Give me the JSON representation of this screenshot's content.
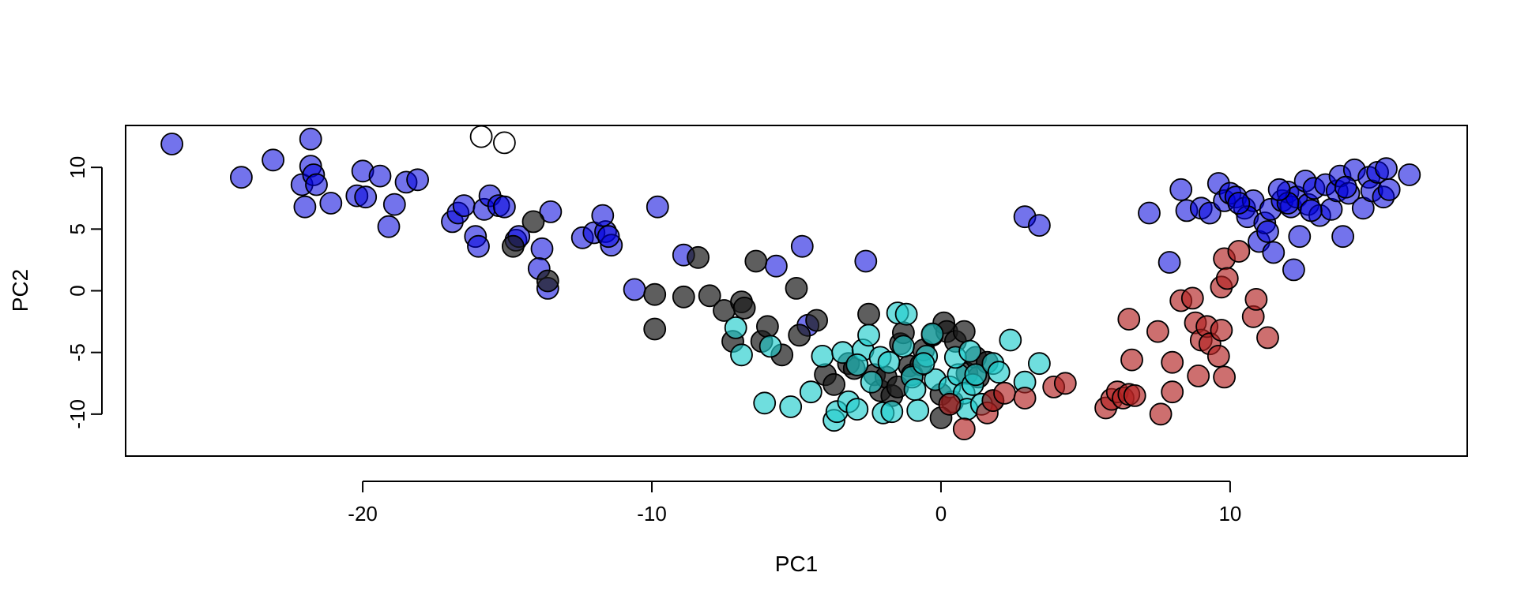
{
  "chart_data": {
    "type": "scatter",
    "title": "",
    "xlabel": "PC1",
    "ylabel": "PC2",
    "xlim": [
      -28.2,
      18.2
    ],
    "ylim": [
      -13.4,
      13.4
    ],
    "x_ticks": [
      -20,
      -10,
      0,
      10
    ],
    "x_tick_labels": [
      "-20",
      "-10",
      "0",
      "10"
    ],
    "y_ticks": [
      -10,
      -5,
      0,
      5,
      10
    ],
    "y_tick_labels": [
      "-10",
      "-5",
      "0",
      "5",
      "10"
    ],
    "grid": false,
    "legend": "none",
    "series": [
      {
        "name": "blue",
        "color": "#0000dd",
        "opacity": 0.55,
        "points": [
          [
            -26.6,
            11.9
          ],
          [
            -24.2,
            9.2
          ],
          [
            -23.1,
            10.6
          ],
          [
            -21.8,
            12.3
          ],
          [
            -22.1,
            8.6
          ],
          [
            -21.8,
            10.1
          ],
          [
            -21.7,
            9.4
          ],
          [
            -21.6,
            8.6
          ],
          [
            -22.0,
            6.8
          ],
          [
            -21.1,
            7.1
          ],
          [
            -20.2,
            7.7
          ],
          [
            -20.0,
            9.7
          ],
          [
            -19.9,
            7.6
          ],
          [
            -19.4,
            9.3
          ],
          [
            -18.9,
            7.0
          ],
          [
            -19.1,
            5.2
          ],
          [
            -18.5,
            8.8
          ],
          [
            -18.1,
            9.0
          ],
          [
            -16.9,
            5.6
          ],
          [
            -16.7,
            6.3
          ],
          [
            -16.5,
            6.9
          ],
          [
            -16.1,
            4.4
          ],
          [
            -15.8,
            6.6
          ],
          [
            -15.6,
            7.7
          ],
          [
            -15.3,
            6.9
          ],
          [
            -15.1,
            6.8
          ],
          [
            -16.0,
            3.6
          ],
          [
            -14.7,
            4.1
          ],
          [
            -14.6,
            4.4
          ],
          [
            -13.8,
            3.4
          ],
          [
            -13.9,
            1.8
          ],
          [
            -13.6,
            0.2
          ],
          [
            -13.5,
            6.4
          ],
          [
            -12.4,
            4.3
          ],
          [
            -12.0,
            4.7
          ],
          [
            -11.6,
            4.8
          ],
          [
            -11.7,
            6.1
          ],
          [
            -11.4,
            3.7
          ],
          [
            -11.5,
            4.4
          ],
          [
            -10.6,
            0.1
          ],
          [
            -9.8,
            6.8
          ],
          [
            -8.9,
            2.9
          ],
          [
            -5.7,
            2.0
          ],
          [
            -4.8,
            3.6
          ],
          [
            -4.6,
            -2.8
          ],
          [
            -2.6,
            2.4
          ],
          [
            2.9,
            6.0
          ],
          [
            3.4,
            5.3
          ],
          [
            7.2,
            6.3
          ],
          [
            7.9,
            2.3
          ],
          [
            8.3,
            8.2
          ],
          [
            8.5,
            6.5
          ],
          [
            9.0,
            6.7
          ],
          [
            9.3,
            6.3
          ],
          [
            9.6,
            8.7
          ],
          [
            9.8,
            7.3
          ],
          [
            10.0,
            7.9
          ],
          [
            10.2,
            7.6
          ],
          [
            10.5,
            6.7
          ],
          [
            10.8,
            7.3
          ],
          [
            10.6,
            6.0
          ],
          [
            11.0,
            4.0
          ],
          [
            11.2,
            5.5
          ],
          [
            11.3,
            4.8
          ],
          [
            11.4,
            6.6
          ],
          [
            11.5,
            3.1
          ],
          [
            11.8,
            7.3
          ],
          [
            12.0,
            8.0
          ],
          [
            12.1,
            6.8
          ],
          [
            12.3,
            7.6
          ],
          [
            12.4,
            4.4
          ],
          [
            12.6,
            8.9
          ],
          [
            12.7,
            7.0
          ],
          [
            12.2,
            1.7
          ],
          [
            12.9,
            8.3
          ],
          [
            13.1,
            6.1
          ],
          [
            13.3,
            8.6
          ],
          [
            13.5,
            6.6
          ],
          [
            13.7,
            8.1
          ],
          [
            13.8,
            9.3
          ],
          [
            13.9,
            4.4
          ],
          [
            14.1,
            7.9
          ],
          [
            14.3,
            9.8
          ],
          [
            14.6,
            6.7
          ],
          [
            14.8,
            9.2
          ],
          [
            14.9,
            8.1
          ],
          [
            15.1,
            9.6
          ],
          [
            15.3,
            7.6
          ],
          [
            15.5,
            8.2
          ],
          [
            15.4,
            9.9
          ],
          [
            16.2,
            9.4
          ],
          [
            14.0,
            8.4
          ],
          [
            12.8,
            6.5
          ],
          [
            12.0,
            7.1
          ],
          [
            11.7,
            8.2
          ],
          [
            10.3,
            7.1
          ]
        ]
      },
      {
        "name": "white",
        "color": "#ffffff",
        "opacity": 1.0,
        "points": [
          [
            -15.9,
            12.5
          ],
          [
            -15.1,
            12.0
          ]
        ]
      },
      {
        "name": "dark gray",
        "color": "#1a1a1a",
        "opacity": 0.7,
        "points": [
          [
            -14.8,
            3.6
          ],
          [
            -14.1,
            5.6
          ],
          [
            -13.6,
            0.8
          ],
          [
            -9.9,
            -0.3
          ],
          [
            -9.9,
            -3.1
          ],
          [
            -8.9,
            -0.5
          ],
          [
            -8.4,
            2.7
          ],
          [
            -8.0,
            -0.4
          ],
          [
            -7.5,
            -1.6
          ],
          [
            -7.2,
            -4.1
          ],
          [
            -6.9,
            -0.9
          ],
          [
            -6.8,
            -1.4
          ],
          [
            -6.4,
            2.4
          ],
          [
            -6.2,
            -4.1
          ],
          [
            -6.0,
            -2.9
          ],
          [
            -5.5,
            -5.2
          ],
          [
            -5.0,
            0.2
          ],
          [
            -4.9,
            -3.6
          ],
          [
            -4.3,
            -2.4
          ],
          [
            -4.0,
            -6.8
          ],
          [
            -3.7,
            -7.6
          ],
          [
            -3.2,
            -5.9
          ],
          [
            -3.0,
            -6.3
          ],
          [
            -2.5,
            -1.9
          ],
          [
            -2.3,
            -6.8
          ],
          [
            -2.1,
            -8.1
          ],
          [
            -1.9,
            -7.0
          ],
          [
            -1.7,
            -8.5
          ],
          [
            -1.5,
            -7.8
          ],
          [
            -1.4,
            -4.3
          ],
          [
            -1.3,
            -3.4
          ],
          [
            -1.1,
            -6.1
          ],
          [
            -1.0,
            -6.8
          ],
          [
            -0.7,
            -6.0
          ],
          [
            -0.6,
            -4.8
          ],
          [
            -0.3,
            -3.6
          ],
          [
            0.0,
            -8.4
          ],
          [
            0.1,
            -2.6
          ],
          [
            0.2,
            -3.3
          ],
          [
            0.4,
            -9.0
          ],
          [
            0.5,
            -4.1
          ],
          [
            0.8,
            -3.3
          ],
          [
            0.9,
            -6.7
          ],
          [
            1.2,
            -5.4
          ],
          [
            1.3,
            -7.0
          ],
          [
            1.6,
            -5.8
          ],
          [
            1.8,
            -8.9
          ],
          [
            0.0,
            -10.3
          ]
        ]
      },
      {
        "name": "cyan",
        "color": "#22cccc",
        "opacity": 0.65,
        "points": [
          [
            -7.1,
            -3.0
          ],
          [
            -6.9,
            -5.2
          ],
          [
            -6.1,
            -9.1
          ],
          [
            -5.9,
            -4.5
          ],
          [
            -5.2,
            -9.4
          ],
          [
            -4.5,
            -8.2
          ],
          [
            -4.1,
            -5.3
          ],
          [
            -3.7,
            -10.5
          ],
          [
            -3.6,
            -9.8
          ],
          [
            -3.4,
            -5.0
          ],
          [
            -3.2,
            -9.0
          ],
          [
            -2.9,
            -9.6
          ],
          [
            -2.7,
            -4.8
          ],
          [
            -2.5,
            -3.6
          ],
          [
            -2.4,
            -7.4
          ],
          [
            -2.1,
            -5.4
          ],
          [
            -2.0,
            -9.9
          ],
          [
            -1.8,
            -5.8
          ],
          [
            -1.7,
            -9.8
          ],
          [
            -1.5,
            -1.8
          ],
          [
            -1.3,
            -4.5
          ],
          [
            -1.2,
            -1.9
          ],
          [
            -1.0,
            -7.0
          ],
          [
            -0.9,
            -8.0
          ],
          [
            -0.8,
            -9.7
          ],
          [
            -0.5,
            -5.3
          ],
          [
            -0.3,
            -3.5
          ],
          [
            -0.2,
            -7.2
          ],
          [
            0.3,
            -7.8
          ],
          [
            0.6,
            -6.8
          ],
          [
            0.8,
            -8.3
          ],
          [
            0.9,
            -9.6
          ],
          [
            1.1,
            -7.6
          ],
          [
            1.2,
            -6.8
          ],
          [
            1.4,
            -9.2
          ],
          [
            1.8,
            -5.9
          ],
          [
            2.0,
            -6.6
          ],
          [
            2.4,
            -4.0
          ],
          [
            2.9,
            -7.4
          ],
          [
            3.4,
            -5.9
          ],
          [
            0.5,
            -5.4
          ],
          [
            1.0,
            -4.9
          ],
          [
            -0.6,
            -5.9
          ],
          [
            -2.9,
            -6.0
          ]
        ]
      },
      {
        "name": "red",
        "color": "#b22222",
        "opacity": 0.65,
        "points": [
          [
            0.3,
            -9.2
          ],
          [
            0.8,
            -11.2
          ],
          [
            1.6,
            -9.9
          ],
          [
            1.8,
            -8.9
          ],
          [
            2.2,
            -8.3
          ],
          [
            2.9,
            -8.7
          ],
          [
            3.9,
            -7.8
          ],
          [
            4.3,
            -7.5
          ],
          [
            5.7,
            -9.5
          ],
          [
            5.9,
            -8.8
          ],
          [
            6.1,
            -8.2
          ],
          [
            6.3,
            -8.7
          ],
          [
            6.5,
            -8.4
          ],
          [
            6.7,
            -8.5
          ],
          [
            6.5,
            -2.3
          ],
          [
            6.6,
            -5.6
          ],
          [
            7.5,
            -3.3
          ],
          [
            7.6,
            -10.0
          ],
          [
            8.0,
            -5.8
          ],
          [
            8.0,
            -8.2
          ],
          [
            8.3,
            -0.8
          ],
          [
            8.7,
            -0.6
          ],
          [
            8.8,
            -2.6
          ],
          [
            8.9,
            -6.9
          ],
          [
            9.0,
            -4.0
          ],
          [
            9.2,
            -2.9
          ],
          [
            9.3,
            -4.3
          ],
          [
            9.6,
            -5.3
          ],
          [
            9.7,
            -3.2
          ],
          [
            9.7,
            0.3
          ],
          [
            9.8,
            -7.0
          ],
          [
            9.8,
            2.6
          ],
          [
            9.9,
            1.0
          ],
          [
            10.3,
            3.2
          ],
          [
            10.8,
            -2.1
          ],
          [
            10.9,
            -0.7
          ],
          [
            11.3,
            -3.8
          ]
        ]
      }
    ]
  }
}
